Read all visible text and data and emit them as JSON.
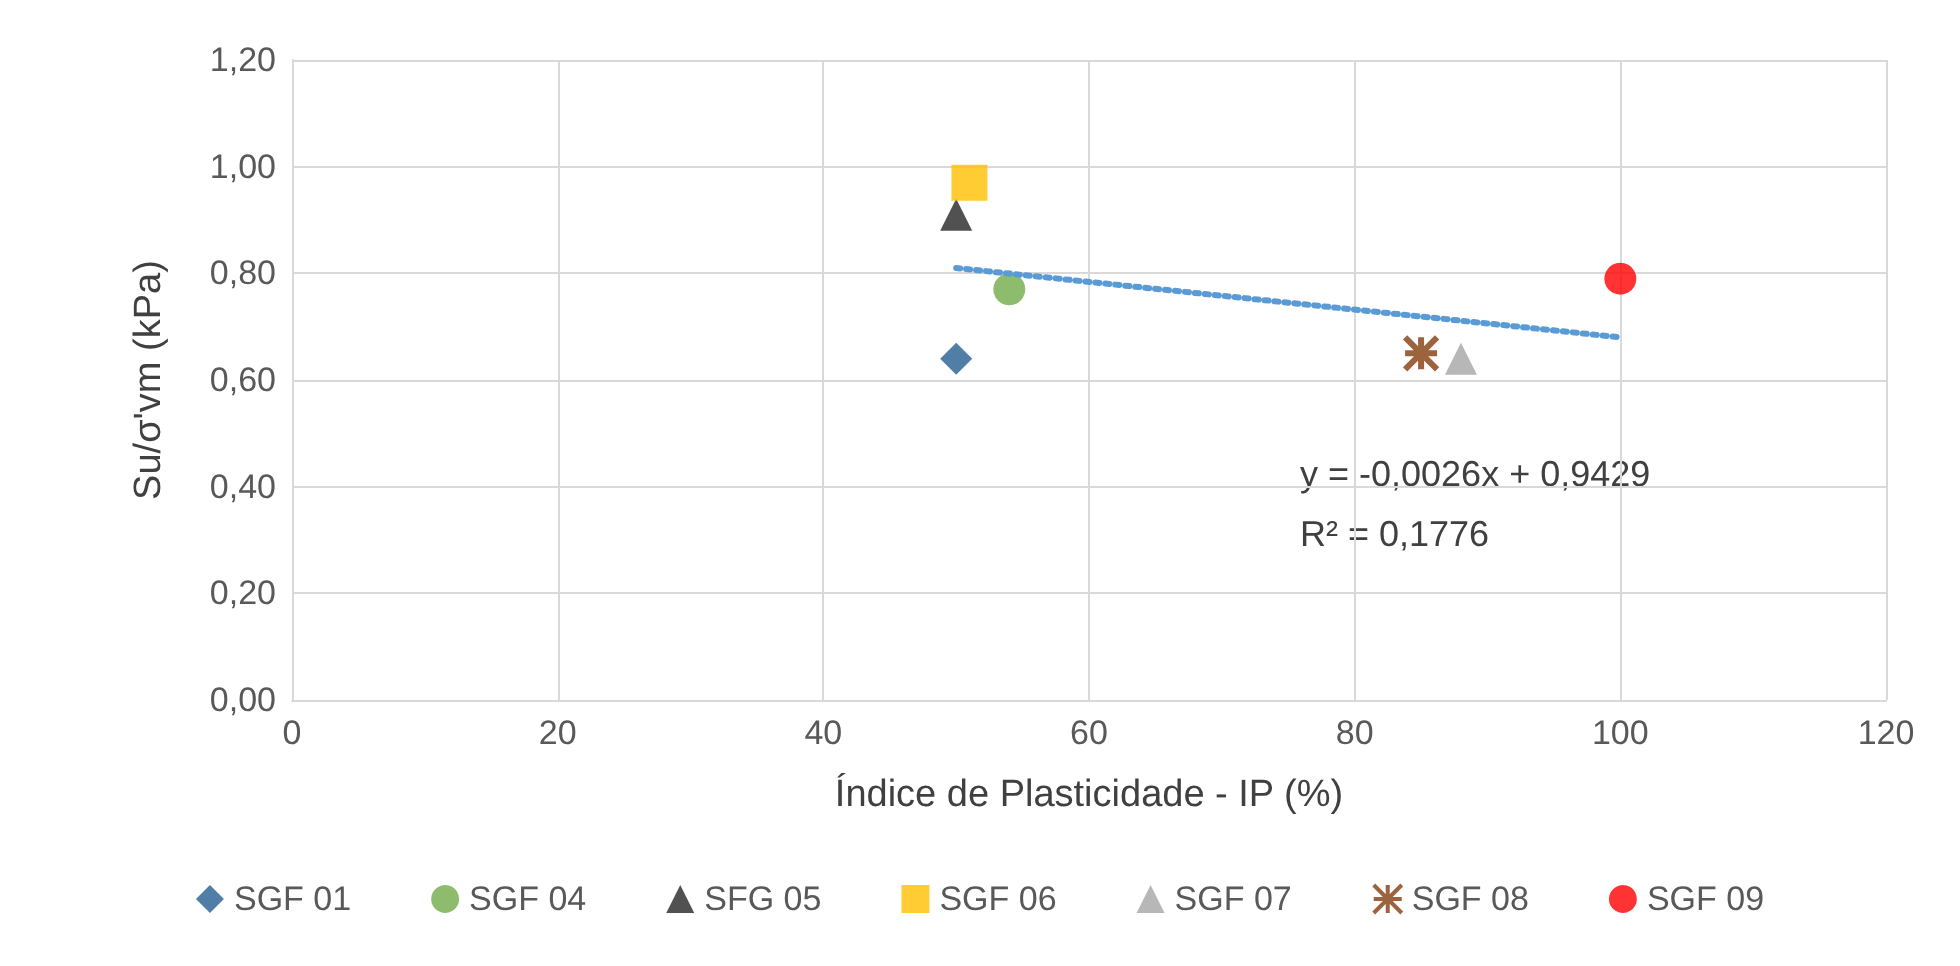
{
  "chart_data": {
    "type": "scatter",
    "xlabel": "Índice de Plasticidade - IP (%)",
    "ylabel": "Su/σ'vm (kPa)",
    "xlim": [
      0,
      120
    ],
    "xticks": [
      0,
      20,
      40,
      60,
      80,
      100,
      120
    ],
    "ylim": [
      0,
      1.2
    ],
    "yticks": [
      {
        "value": 0,
        "label": "0,00"
      },
      {
        "value": 0.2,
        "label": "0,20"
      },
      {
        "value": 0.4,
        "label": "0,40"
      },
      {
        "value": 0.6,
        "label": "0,60"
      },
      {
        "value": 0.8,
        "label": "0,80"
      },
      {
        "value": 1,
        "label": "1,00"
      },
      {
        "value": 1.2,
        "label": "1,20"
      }
    ],
    "grid": true,
    "legend": "bottom",
    "series": [
      {
        "name": "SGF 01",
        "color": "#255e91",
        "marker": "diamond",
        "x": [
          50
        ],
        "values": [
          0.64
        ]
      },
      {
        "name": "SGF 04",
        "color": "#70ad47",
        "marker": "circle",
        "x": [
          54
        ],
        "values": [
          0.77
        ]
      },
      {
        "name": "SFG 05",
        "color": "#262626",
        "marker": "triangle",
        "x": [
          50
        ],
        "values": [
          0.91
        ]
      },
      {
        "name": "SGF 06",
        "color": "#ffc000",
        "marker": "square",
        "x": [
          51
        ],
        "values": [
          0.97
        ]
      },
      {
        "name": "SGF 07",
        "color": "#a5a5a5",
        "marker": "triangle",
        "x": [
          88
        ],
        "values": [
          0.64
        ]
      },
      {
        "name": "SGF 08",
        "color": "#843c0c",
        "marker": "cross",
        "x": [
          85
        ],
        "values": [
          0.65
        ]
      },
      {
        "name": "SGF 09",
        "color": "#ff0000",
        "marker": "circle",
        "x": [
          100
        ],
        "values": [
          0.79
        ]
      },
      {
        "type": "line",
        "color": "#5b9bd5",
        "line_style": "dotted",
        "marker": "none",
        "x": [
          50,
          100
        ],
        "values": [
          0.81,
          0.68
        ]
      }
    ],
    "annotations": [
      "y = -0,0026x + 0,9429",
      "R² = 0,1776"
    ]
  }
}
